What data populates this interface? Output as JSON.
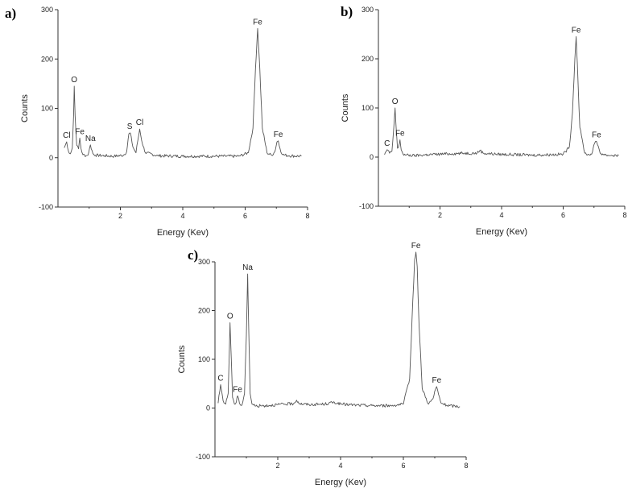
{
  "chart_data": [
    {
      "type": "line",
      "panel": "a)",
      "xlabel": "Energy (Kev)",
      "ylabel": "Counts",
      "xlim": [
        0,
        8
      ],
      "ylim": [
        -100,
        300
      ],
      "xticks": [
        "2",
        "4",
        "6",
        "8"
      ],
      "yticks": [
        "-100",
        "0",
        "100",
        "200",
        "300"
      ],
      "grid": false,
      "series": [
        {
          "x": [
            0.2,
            0.28,
            0.34,
            0.4,
            0.46,
            0.5,
            0.52,
            0.55,
            0.6,
            0.66,
            0.7,
            0.74,
            0.8,
            0.9,
            0.96,
            1.04,
            1.12,
            1.2,
            1.5,
            1.8,
            2.1,
            2.2,
            2.27,
            2.32,
            2.4,
            2.5,
            2.56,
            2.62,
            2.68,
            2.8,
            3.2,
            4.0,
            5.0,
            5.8,
            6.1,
            6.25,
            6.33,
            6.4,
            6.47,
            6.55,
            6.7,
            6.85,
            6.95,
            7.02,
            7.06,
            7.12,
            7.2,
            7.4,
            7.8
          ],
          "y": [
            20,
            32,
            12,
            8,
            20,
            85,
            145,
            85,
            25,
            18,
            40,
            18,
            6,
            4,
            5,
            26,
            8,
            5,
            4,
            3,
            5,
            12,
            48,
            50,
            22,
            10,
            35,
            58,
            35,
            10,
            4,
            3,
            3,
            3,
            10,
            60,
            180,
            262,
            180,
            60,
            10,
            5,
            12,
            32,
            34,
            18,
            6,
            4,
            3
          ]
        }
      ],
      "annotations": [
        {
          "text": "Cl",
          "x": 0.28,
          "y": 32
        },
        {
          "text": "O",
          "x": 0.52,
          "y": 145
        },
        {
          "text": "Fe",
          "x": 0.7,
          "y": 40
        },
        {
          "text": "Na",
          "x": 1.04,
          "y": 26
        },
        {
          "text": "S",
          "x": 2.3,
          "y": 50
        },
        {
          "text": "Cl",
          "x": 2.62,
          "y": 58
        },
        {
          "text": "Fe",
          "x": 6.4,
          "y": 262
        },
        {
          "text": "Fe",
          "x": 7.06,
          "y": 34
        }
      ]
    },
    {
      "type": "line",
      "panel": "b)",
      "xlabel": "Energy (Kev)",
      "ylabel": "Counts",
      "xlim": [
        0,
        8
      ],
      "ylim": [
        -100,
        300
      ],
      "xticks": [
        "2",
        "4",
        "6",
        "8"
      ],
      "yticks": [
        "-100",
        "0",
        "100",
        "200",
        "300"
      ],
      "grid": false,
      "series": [
        {
          "x": [
            0.2,
            0.28,
            0.36,
            0.44,
            0.5,
            0.54,
            0.58,
            0.62,
            0.66,
            0.7,
            0.74,
            0.8,
            0.9,
            1.2,
            1.6,
            2.0,
            2.4,
            2.8,
            3.2,
            3.3,
            3.4,
            3.8,
            4.4,
            5.0,
            5.6,
            6.0,
            6.2,
            6.3,
            6.38,
            6.42,
            6.46,
            6.54,
            6.7,
            6.85,
            6.95,
            7.02,
            7.08,
            7.14,
            7.2,
            7.4,
            7.8
          ],
          "y": [
            5,
            15,
            8,
            12,
            60,
            100,
            55,
            18,
            22,
            35,
            15,
            6,
            4,
            3,
            5,
            6,
            7,
            8,
            8,
            14,
            8,
            6,
            5,
            4,
            5,
            6,
            20,
            90,
            200,
            245,
            190,
            60,
            8,
            4,
            10,
            28,
            32,
            22,
            8,
            4,
            3
          ]
        }
      ],
      "annotations": [
        {
          "text": "C",
          "x": 0.28,
          "y": 15
        },
        {
          "text": "O",
          "x": 0.54,
          "y": 100
        },
        {
          "text": "Fe",
          "x": 0.7,
          "y": 35
        },
        {
          "text": "Fe",
          "x": 6.42,
          "y": 245
        },
        {
          "text": "Fe",
          "x": 7.08,
          "y": 32
        }
      ]
    },
    {
      "type": "line",
      "panel": "c)",
      "xlabel": "Energy (Kev)",
      "ylabel": "Counts",
      "xlim": [
        0,
        8
      ],
      "ylim": [
        -100,
        300
      ],
      "xticks": [
        "2",
        "4",
        "6",
        "8"
      ],
      "yticks": [
        "-100",
        "0",
        "100",
        "200",
        "300"
      ],
      "grid": false,
      "series": [
        {
          "x": [
            0.1,
            0.18,
            0.26,
            0.34,
            0.42,
            0.48,
            0.52,
            0.56,
            0.62,
            0.68,
            0.72,
            0.78,
            0.86,
            0.94,
            1.0,
            1.04,
            1.08,
            1.12,
            1.18,
            1.3,
            1.6,
            2.0,
            2.5,
            2.6,
            2.7,
            3.0,
            3.5,
            3.8,
            4.0,
            4.5,
            5.0,
            5.6,
            6.0,
            6.2,
            6.3,
            6.36,
            6.4,
            6.44,
            6.5,
            6.6,
            6.8,
            6.95,
            7.02,
            7.06,
            7.12,
            7.2,
            7.4,
            7.8
          ],
          "y": [
            10,
            48,
            15,
            8,
            30,
            175,
            100,
            22,
            8,
            12,
            25,
            10,
            6,
            30,
            150,
            275,
            150,
            30,
            8,
            4,
            5,
            7,
            9,
            16,
            9,
            7,
            8,
            12,
            8,
            6,
            5,
            5,
            8,
            60,
            220,
            305,
            320,
            290,
            170,
            40,
            8,
            20,
            38,
            44,
            28,
            10,
            5,
            3
          ]
        }
      ],
      "annotations": [
        {
          "text": "C",
          "x": 0.18,
          "y": 48
        },
        {
          "text": "O",
          "x": 0.48,
          "y": 175
        },
        {
          "text": "Fe",
          "x": 0.72,
          "y": 25
        },
        {
          "text": "Na",
          "x": 1.04,
          "y": 275
        },
        {
          "text": "Fe",
          "x": 6.4,
          "y": 320
        },
        {
          "text": "Fe",
          "x": 7.06,
          "y": 44
        }
      ]
    }
  ]
}
